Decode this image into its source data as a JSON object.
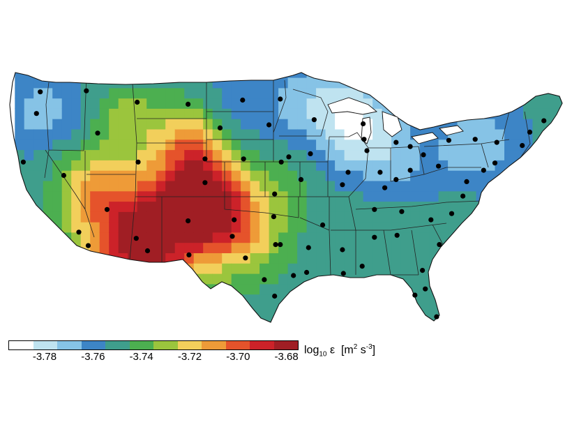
{
  "legend": {
    "bins": [
      {
        "min": null,
        "max": -3.785,
        "color": "#ffffff"
      },
      {
        "min": -3.785,
        "max": -3.775,
        "color": "#bfe3f0"
      },
      {
        "min": -3.775,
        "max": -3.765,
        "color": "#86c3e6"
      },
      {
        "min": -3.765,
        "max": -3.755,
        "color": "#3d85c6"
      },
      {
        "min": -3.755,
        "max": -3.745,
        "color": "#3f9e8c"
      },
      {
        "min": -3.745,
        "max": -3.735,
        "color": "#4caf50"
      },
      {
        "min": -3.735,
        "max": -3.725,
        "color": "#9bc53d"
      },
      {
        "min": -3.725,
        "max": -3.715,
        "color": "#f2cf5b"
      },
      {
        "min": -3.715,
        "max": -3.705,
        "color": "#ee9b38"
      },
      {
        "min": -3.705,
        "max": -3.695,
        "color": "#e5532b"
      },
      {
        "min": -3.695,
        "max": -3.685,
        "color": "#cc2229"
      },
      {
        "min": -3.685,
        "max": null,
        "color": "#a01e24"
      }
    ],
    "ticks": [
      "-3.78",
      "-3.76",
      "-3.74",
      "-3.72",
      "-3.70",
      "-3.68"
    ],
    "title_main": "log",
    "title_sub": "10",
    "title_symbol": "ε",
    "title_units_open": "[m",
    "title_units_sup1": "2",
    "title_units_mid": " s",
    "title_units_sup2": "-3",
    "title_units_close": "]"
  },
  "stations": [
    [
      -122.3,
      47.6
    ],
    [
      -122.7,
      45.5
    ],
    [
      -124.1,
      40.8
    ],
    [
      -119.8,
      39.5
    ],
    [
      -117.4,
      47.7
    ],
    [
      -116.2,
      43.6
    ],
    [
      -112.0,
      46.6
    ],
    [
      -106.6,
      46.4
    ],
    [
      -104.8,
      41.1
    ],
    [
      -111.9,
      40.8
    ],
    [
      -117.2,
      32.7
    ],
    [
      -118.2,
      34.0
    ],
    [
      -115.2,
      36.2
    ],
    [
      -112.1,
      33.4
    ],
    [
      -110.9,
      32.2
    ],
    [
      -106.6,
      35.1
    ],
    [
      -106.5,
      31.8
    ],
    [
      -104.8,
      38.8
    ],
    [
      -101.7,
      35.2
    ],
    [
      -97.5,
      35.5
    ],
    [
      -97.3,
      32.8
    ],
    [
      -96.8,
      32.8
    ],
    [
      -95.4,
      29.8
    ],
    [
      -98.5,
      29.4
    ],
    [
      -101.9,
      33.6
    ],
    [
      -100.8,
      46.8
    ],
    [
      -96.8,
      46.9
    ],
    [
      -98.0,
      44.4
    ],
    [
      -96.7,
      40.8
    ],
    [
      -100.7,
      41.1
    ],
    [
      -93.2,
      44.9
    ],
    [
      -93.6,
      41.6
    ],
    [
      -94.6,
      39.1
    ],
    [
      -97.4,
      37.7
    ],
    [
      -90.2,
      38.6
    ],
    [
      -89.6,
      39.8
    ],
    [
      -87.9,
      43.0
    ],
    [
      -87.6,
      41.9
    ],
    [
      -86.2,
      39.8
    ],
    [
      -83.0,
      40.0
    ],
    [
      -84.5,
      42.7
    ],
    [
      -83.0,
      42.3
    ],
    [
      -88.0,
      44.5
    ],
    [
      -90.1,
      30.0
    ],
    [
      -90.2,
      32.3
    ],
    [
      -92.3,
      34.7
    ],
    [
      -86.8,
      36.2
    ],
    [
      -86.8,
      33.5
    ],
    [
      -84.4,
      33.7
    ],
    [
      -81.7,
      30.3
    ],
    [
      -80.2,
      25.8
    ],
    [
      -82.5,
      27.9
    ],
    [
      -81.4,
      28.5
    ],
    [
      -80.8,
      35.2
    ],
    [
      -78.6,
      35.8
    ],
    [
      -77.4,
      37.5
    ],
    [
      -77.0,
      38.9
    ],
    [
      -75.2,
      40.0
    ],
    [
      -74.0,
      40.7
    ],
    [
      -73.8,
      42.7
    ],
    [
      -71.1,
      42.4
    ],
    [
      -70.3,
      43.7
    ],
    [
      -68.8,
      44.8
    ],
    [
      -80.0,
      40.4
    ],
    [
      -81.6,
      41.5
    ],
    [
      -78.9,
      42.9
    ],
    [
      -76.1,
      43.0
    ],
    [
      -84.5,
      39.1
    ],
    [
      -85.7,
      38.3
    ],
    [
      -83.9,
      36.0
    ],
    [
      -88.1,
      30.7
    ],
    [
      -79.9,
      32.8
    ],
    [
      -93.8,
      32.5
    ],
    [
      -94.0,
      30.1
    ],
    [
      -97.4,
      27.8
    ],
    [
      -100.5,
      31.5
    ],
    [
      -95.9,
      41.3
    ],
    [
      -103.2,
      44.1
    ]
  ]
}
